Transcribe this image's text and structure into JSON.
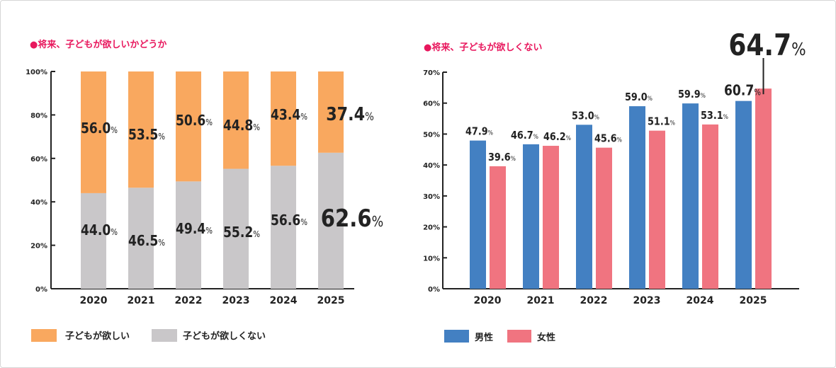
{
  "colors": {
    "want": "#f9a85f",
    "not_want": "#c9c7c9",
    "male": "#4380c2",
    "female": "#f07480",
    "accent": "#e8175d",
    "text": "#222222"
  },
  "chart_data": [
    {
      "type": "bar",
      "stacked": true,
      "title": "●将来、子どもが欲しいかどうか",
      "categories": [
        "2020",
        "2021",
        "2022",
        "2023",
        "2024",
        "2025"
      ],
      "series": [
        {
          "name": "子どもが欲しくない",
          "values": [
            44.0,
            46.5,
            49.4,
            55.2,
            56.6,
            62.6
          ],
          "labels": [
            "44.0",
            "46.5",
            "49.4",
            "55.2",
            "56.6",
            "62.6"
          ]
        },
        {
          "name": "子どもが欲しい",
          "values": [
            56.0,
            53.5,
            50.6,
            44.8,
            43.4,
            37.4
          ],
          "labels": [
            "56.0",
            "53.5",
            "50.6",
            "44.8",
            "43.4",
            "37.4"
          ]
        }
      ],
      "ylim": [
        0,
        100
      ],
      "yticks": [
        "0%",
        "20%",
        "40%",
        "60%",
        "80%",
        "100%"
      ],
      "legend": "bottom-left",
      "legend_entries": [
        "子どもが欲しい",
        "子どもが欲しくない"
      ],
      "grid": false
    },
    {
      "type": "bar",
      "title": "●将来、子どもが欲しくない",
      "categories": [
        "2020",
        "2021",
        "2022",
        "2023",
        "2024",
        "2025"
      ],
      "series": [
        {
          "name": "男性",
          "values": [
            47.9,
            46.7,
            53.0,
            59.0,
            59.9,
            60.7
          ],
          "labels": [
            "47.9",
            "46.7",
            "53.0",
            "59.0",
            "59.9",
            "60.7"
          ]
        },
        {
          "name": "女性",
          "values": [
            39.6,
            46.2,
            45.6,
            51.1,
            53.1,
            64.7
          ],
          "labels": [
            "39.6",
            "46.2",
            "45.6",
            "51.1",
            "53.1",
            "64.7"
          ]
        }
      ],
      "ylim": [
        0,
        70
      ],
      "yticks": [
        "0%",
        "10%",
        "20%",
        "30%",
        "40%",
        "50%",
        "60%",
        "70%"
      ],
      "legend": "bottom-left",
      "legend_entries": [
        "男性",
        "女性"
      ],
      "grid": false
    }
  ],
  "percent_sign": "%"
}
